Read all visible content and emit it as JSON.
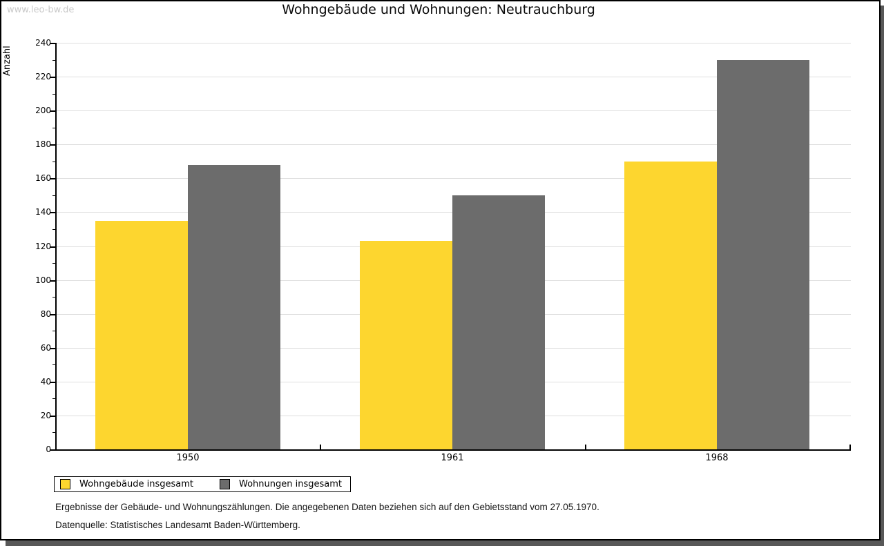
{
  "watermark": "www.leo-bw.de",
  "header": {
    "title": "Wohngebäude und Wohnungen: Neutrauchburg"
  },
  "chart_data": {
    "type": "bar",
    "title": "Wohngebäude und Wohnungen: Neutrauchburg",
    "categories": [
      "1950",
      "1961",
      "1968"
    ],
    "series": [
      {
        "name": "Wohngebäude insgesamt",
        "color": "#FDD62F",
        "values": [
          135,
          123,
          170
        ]
      },
      {
        "name": "Wohnungen insgesamt",
        "color": "#6C6C6C",
        "values": [
          168,
          150,
          230
        ]
      }
    ],
    "xlabel": "",
    "ylabel": "Anzahl",
    "ylim": [
      0,
      240
    ],
    "ytick_step": 20,
    "ytick_minor_step": 10,
    "grid": true,
    "legend_position": "bottom-left"
  },
  "footnotes": {
    "line1": "Ergebnisse der Gebäude- und Wohnungszählungen. Die angegebenen Daten beziehen sich auf den Gebietsstand vom 27.05.1970.",
    "line2": "Datenquelle: Statistisches Landesamt Baden-Württemberg."
  },
  "colors": {
    "series1": "#FDD62F",
    "series2": "#6C6C6C",
    "gridline": "#dedede",
    "axis": "#000000",
    "watermark": "#c9c9c9",
    "frame_shadow": "#585858",
    "background": "#ffffff"
  }
}
